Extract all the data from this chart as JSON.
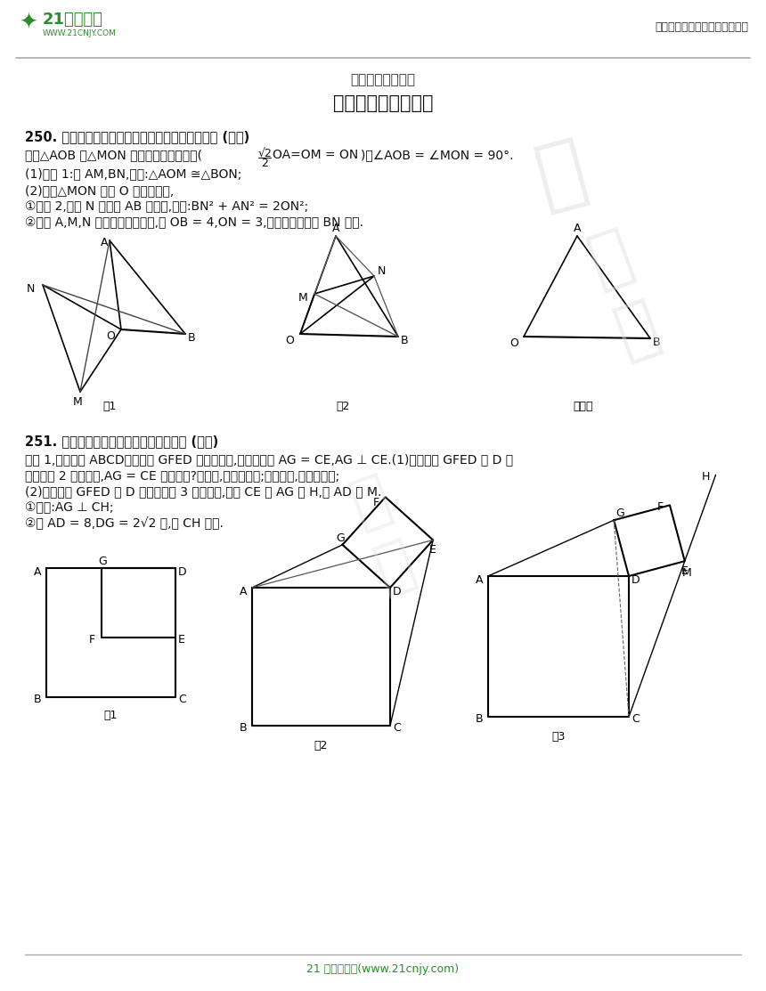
{
  "page_width": 8.6,
  "page_height": 11.13,
  "bg_color": "#ffffff",
  "header_right_text": "中小学教育资源及组卷应用平台",
  "title_small": "中考数学几何模型",
  "title_large": "第十二节：旋转模型",
  "footer_text": "21 世纪教育网(www.21cnjy.com)",
  "section250_title": "250. 等腰直角三角形旋转模型不同位置的结论探讨 (初二)",
  "section250_line1": "已知△AOB 和△MON 都是等腰直角三角形(",
  "section250_line1c": ")，∠AOB = ∠MON = 90°.",
  "section250_cond1": "(1)如图 1:连 AM,BN,求证:△AOM ≅△BON;",
  "section250_cond2": "(2)若将△MON 绕点 O 顺时针旋转,",
  "section250_cond2a": "①如图 2,当点 N 恰好在 AB 边上时,求证:BN² + AN² = 2ON²;",
  "section250_cond2b": "②当点 A,M,N 在同一条直线上时,若 OB = 4,ON = 3,请直接写出线段 BN 的长.",
  "fig1_label": "图1",
  "fig2_label": "图2",
  "fig3_label": "备川图",
  "section251_title": "251. 正方形旋转模型不同位置的结论探讨 (初二)",
  "section251_line1": "如图 1,若四边形 ABCD、四边形 GFED 都是正方形,显然图中有 AG = CE,AG ⊥ CE.(1)当正方形 GFED 绕 D 旋",
  "section251_line2": "转到如图 2 的位置时,AG = CE 是否成立?若成立,请给出证明;若不成立,请说明理由;",
  "section251_line3": "(2)当正方形 GFED 绕 D 旋转到如图 3 的位置时,延长 CE 交 AG 于 H,交 AD 于 M.",
  "section251_line4a": "①求证:AG ⊥ CH;",
  "section251_line4b": "②当 AD = 8,DG = 2√2 时,求 CH 的长.",
  "sq_fig1_label": "图1",
  "sq_fig2_label": "图2",
  "sq_fig3_label": "图3"
}
